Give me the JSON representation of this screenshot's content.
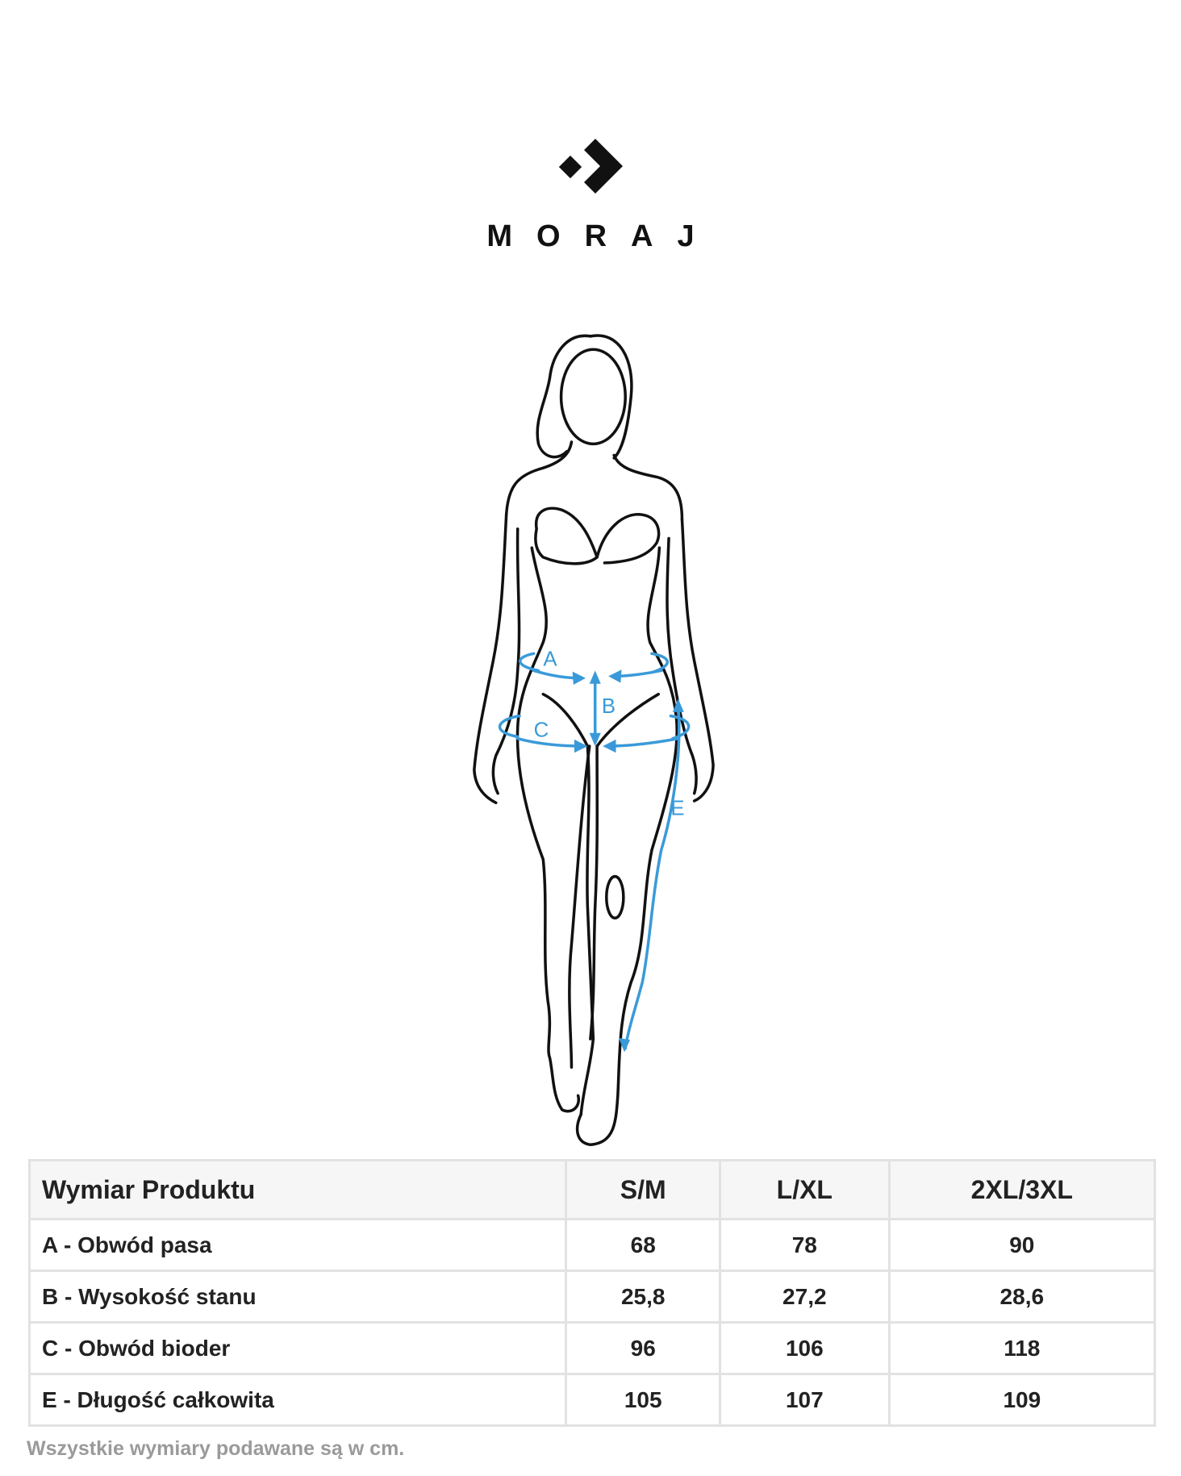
{
  "brand": {
    "name": "MORAJ",
    "logo_icon": "diamond-chevron-logo"
  },
  "figure": {
    "labels": [
      "A",
      "B",
      "C",
      "E"
    ],
    "accent_color": "#3a9ad9"
  },
  "table": {
    "headers": [
      "Wymiar Produktu",
      "S/M",
      "L/XL",
      "2XL/3XL"
    ],
    "rows": [
      [
        "A - Obwód pasa",
        "68",
        "78",
        "90"
      ],
      [
        "B - Wysokość stanu",
        "25,8",
        "27,2",
        "28,6"
      ],
      [
        "C - Obwód bioder",
        "96",
        "106",
        "118"
      ],
      [
        "E - Długość całkowita",
        "105",
        "107",
        "109"
      ]
    ]
  },
  "note": "Wszystkie wymiary podawane są w cm."
}
